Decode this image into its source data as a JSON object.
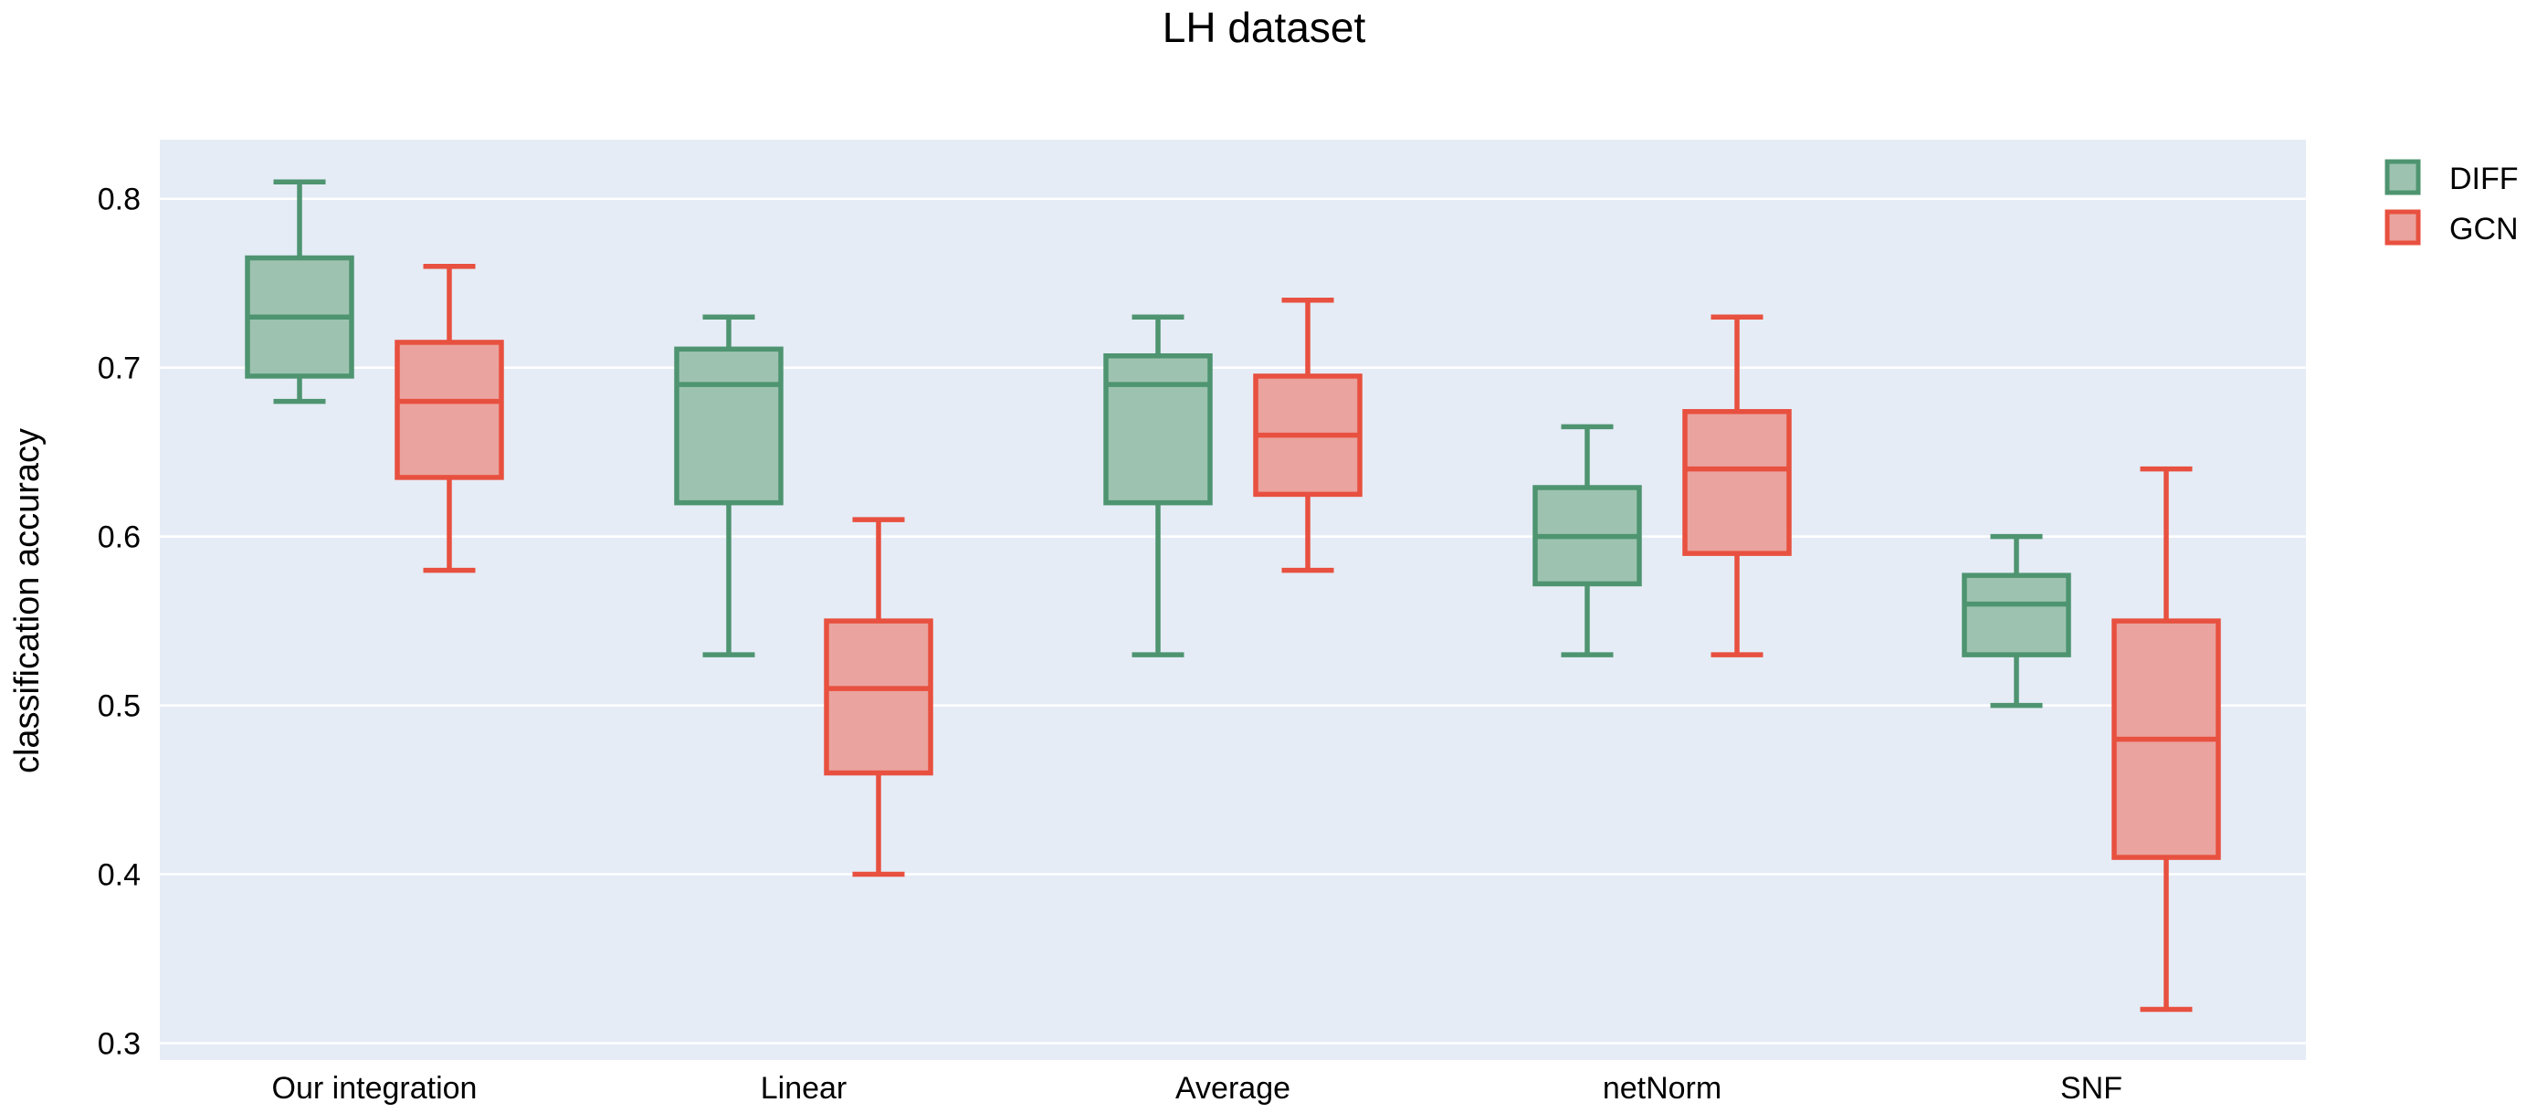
{
  "chart_data": {
    "type": "box",
    "title": "LH dataset",
    "xlabel": "",
    "ylabel": "classification accuracy",
    "ylim": [
      0.29,
      0.835
    ],
    "yticks": [
      "0.3",
      "0.4",
      "0.5",
      "0.6",
      "0.7",
      "0.8"
    ],
    "categories": [
      "Our integration",
      "Linear",
      "Average",
      "netNorm",
      "SNF"
    ],
    "grid": true,
    "legend_position": "top-right",
    "series": [
      {
        "name": "DIFF",
        "line_color": "#4e9470",
        "fill_color": "#9dc3b0",
        "boxes": [
          {
            "min": 0.68,
            "q1": 0.695,
            "median": 0.73,
            "q3": 0.765,
            "max": 0.81
          },
          {
            "min": 0.53,
            "q1": 0.62,
            "median": 0.69,
            "q3": 0.711,
            "max": 0.73
          },
          {
            "min": 0.53,
            "q1": 0.62,
            "median": 0.69,
            "q3": 0.707,
            "max": 0.73
          },
          {
            "min": 0.53,
            "q1": 0.572,
            "median": 0.6,
            "q3": 0.629,
            "max": 0.665
          },
          {
            "min": 0.5,
            "q1": 0.53,
            "median": 0.56,
            "q3": 0.577,
            "max": 0.6
          }
        ]
      },
      {
        "name": "GCN",
        "line_color": "#e8503f",
        "fill_color": "#eaa39e",
        "boxes": [
          {
            "min": 0.58,
            "q1": 0.635,
            "median": 0.68,
            "q3": 0.715,
            "max": 0.76
          },
          {
            "min": 0.4,
            "q1": 0.46,
            "median": 0.51,
            "q3": 0.55,
            "max": 0.61
          },
          {
            "min": 0.58,
            "q1": 0.625,
            "median": 0.66,
            "q3": 0.695,
            "max": 0.74
          },
          {
            "min": 0.53,
            "q1": 0.59,
            "median": 0.64,
            "q3": 0.674,
            "max": 0.73
          },
          {
            "min": 0.32,
            "q1": 0.41,
            "median": 0.48,
            "q3": 0.55,
            "max": 0.64
          }
        ]
      }
    ]
  }
}
